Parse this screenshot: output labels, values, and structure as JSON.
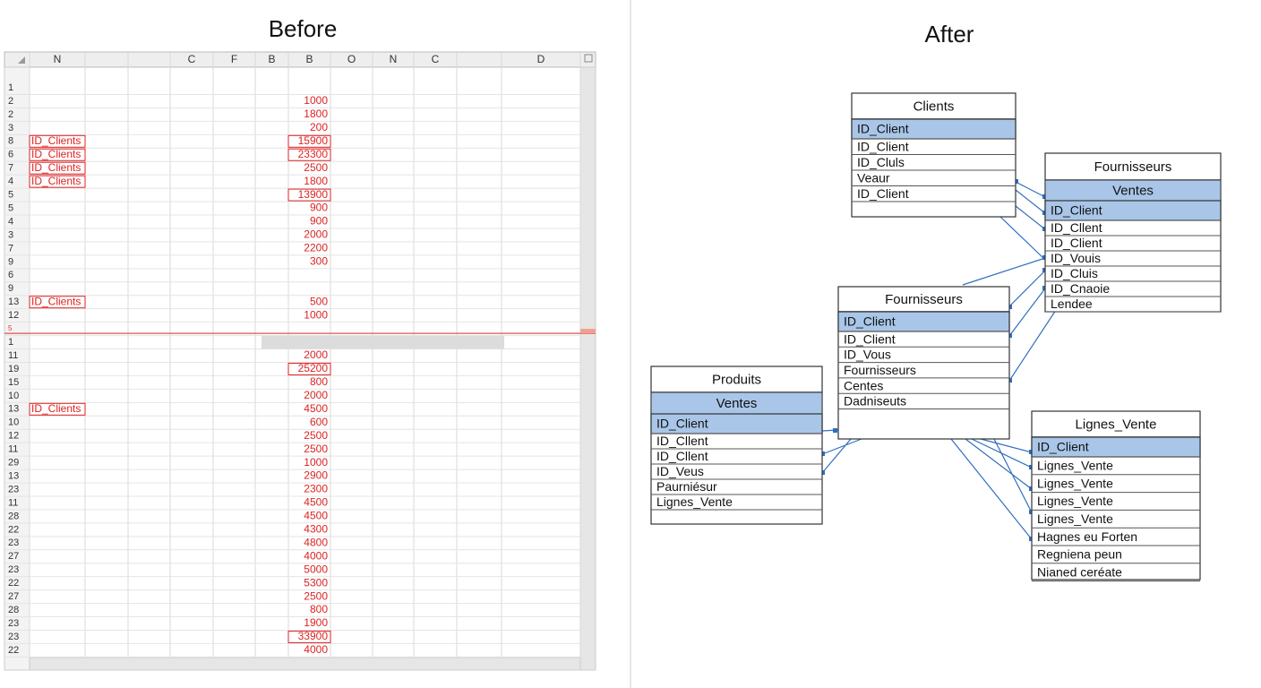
{
  "before": {
    "title": "Before",
    "sheet": {
      "columns": [
        "N",
        "C",
        "F",
        "B",
        "B",
        "O",
        "N",
        "C",
        "D"
      ],
      "rows": [
        {
          "num": 1
        },
        {
          "num": 2,
          "value": 1000
        },
        {
          "num": 2,
          "value": 1800
        },
        {
          "num": 3,
          "value": 200
        },
        {
          "num": 8,
          "label": "ID_Clients",
          "value": 15900,
          "boxed": true
        },
        {
          "num": 6,
          "label": "ID_Clients",
          "value": 23300,
          "boxed": true
        },
        {
          "num": 7,
          "label": "ID_Clients",
          "value": 2500
        },
        {
          "num": 4,
          "label": "ID_Clients",
          "value": 1800
        },
        {
          "num": 5,
          "value": 13900,
          "boxed": true
        },
        {
          "num": 5,
          "value": 900
        },
        {
          "num": 4,
          "value": 900
        },
        {
          "num": 3,
          "value": 2000
        },
        {
          "num": 7,
          "value": 2200
        },
        {
          "num": 9,
          "value": 300
        },
        {
          "num": 6
        },
        {
          "num": 9
        },
        {
          "num": 13,
          "label": "ID_Clients",
          "value": 500
        },
        {
          "num": 12,
          "value": 1000
        },
        {
          "num": 5,
          "split": true
        },
        {
          "num": 1,
          "frozen": true
        },
        {
          "num": 11,
          "value": 2000
        },
        {
          "num": 19,
          "value": 25200,
          "boxed": true
        },
        {
          "num": 15,
          "value": 800
        },
        {
          "num": 10,
          "value": 2000
        },
        {
          "num": 13,
          "label": "ID_Clients",
          "value": 4500
        },
        {
          "num": 10,
          "value": 600
        },
        {
          "num": 12,
          "value": 2500
        },
        {
          "num": 11,
          "value": 2500
        },
        {
          "num": 29,
          "value": 1000
        },
        {
          "num": 13,
          "value": 2900
        },
        {
          "num": 23,
          "value": 2300
        },
        {
          "num": 11,
          "value": 4500
        },
        {
          "num": 28,
          "value": 4500
        },
        {
          "num": 22,
          "value": 4300
        },
        {
          "num": 23,
          "value": 4800
        },
        {
          "num": 27,
          "value": 4000
        },
        {
          "num": 23,
          "value": 5000
        },
        {
          "num": 22,
          "value": 5300
        },
        {
          "num": 27,
          "value": 2500
        },
        {
          "num": 28,
          "value": 800
        },
        {
          "num": 23,
          "value": 1900
        },
        {
          "num": 23,
          "value": 33900,
          "boxed": true
        },
        {
          "num": 22,
          "value": 4000
        }
      ]
    }
  },
  "after": {
    "title": "After",
    "tables": [
      {
        "title": "Clients",
        "rows": [
          "ID_Client",
          "ID_Client",
          "ID_Cluls",
          "Veaur",
          "ID_Client"
        ]
      },
      {
        "title": "Fournisseurs",
        "subtitle": "Ventes",
        "rows": [
          "ID_Client",
          "ID_Cllent",
          "ID_Client",
          "ID_Vouis",
          "ID_Cluis",
          "ID_Cnaoie",
          "Lendee"
        ]
      },
      {
        "title": "Fournisseurs",
        "rows": [
          "ID_Client",
          "ID_Client",
          "ID_Vous",
          "Fournisseurs",
          "Centes",
          "Dadniseuts"
        ]
      },
      {
        "title": "Produits",
        "subtitle": "Ventes",
        "rows": [
          "ID_Client",
          "ID_Cllent",
          "ID_Cllent",
          "ID_Veus",
          "Paurniésur",
          "Lignes_Vente"
        ]
      },
      {
        "title": "Lignes_Vente",
        "rows": [
          "ID_Client",
          "Lignes_Vente",
          "Lignes_Vente",
          "Lignes_Vente",
          "Lignes_Vente",
          "Hagnes eu Forten",
          "Regniena peun",
          "Nianed ceréate"
        ]
      }
    ]
  }
}
